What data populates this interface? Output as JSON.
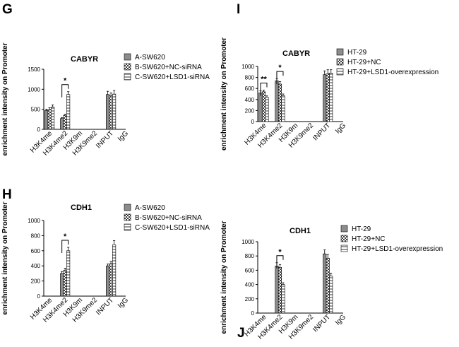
{
  "figure": {
    "series_colors": {
      "solid": "#8c8c8c",
      "checker": "#5a5a5a",
      "stripe": "#bdbdbd"
    },
    "panels": [
      {
        "id": "G",
        "chart_data": {
          "type": "bar",
          "panel_label": "G",
          "title": "CABYR",
          "ylabel": "enrichment intensity on Promoter",
          "xlabel": "",
          "ylim": [
            0,
            1500
          ],
          "yticks": [
            0,
            500,
            1000,
            1500
          ],
          "categories": [
            "H3K4me",
            "H3K4me2",
            "H3K9m",
            "H3K9me2",
            "INPUT",
            "IgG"
          ],
          "series": [
            {
              "name": "A-SW620",
              "pattern": "solid",
              "values": [
                470,
                270,
                0,
                0,
                870,
                0
              ],
              "errors": [
                35,
                25,
                0,
                0,
                80,
                0
              ]
            },
            {
              "name": "B-SW620+NC-siRNA",
              "pattern": "checker",
              "values": [
                500,
                350,
                0,
                0,
                840,
                0
              ],
              "errors": [
                40,
                30,
                0,
                0,
                70,
                0
              ]
            },
            {
              "name": "C-SW620+LSD1-siRNA",
              "pattern": "stripe",
              "values": [
                560,
                870,
                0,
                0,
                880,
                0
              ],
              "errors": [
                50,
                70,
                0,
                0,
                90,
                0
              ]
            }
          ],
          "annotations": [
            {
              "text": "*",
              "category": "H3K4me2"
            }
          ],
          "legend": "right"
        }
      },
      {
        "id": "I",
        "chart_data": {
          "type": "bar",
          "panel_label": "I",
          "title": "CABYR",
          "ylabel": "enrichment intensity on Promoter",
          "xlabel": "",
          "ylim": [
            0,
            1000
          ],
          "yticks": [
            0,
            200,
            400,
            600,
            800,
            1000
          ],
          "categories": [
            "H3K4me",
            "H3K4me2",
            "H3K9m",
            "H3K9me2",
            "INPUT",
            "IgG"
          ],
          "series": [
            {
              "name": "HT-29",
              "pattern": "solid",
              "values": [
                520,
                740,
                0,
                0,
                850,
                0
              ],
              "errors": [
                35,
                40,
                0,
                0,
                70,
                0
              ]
            },
            {
              "name": "HT-29+NC",
              "pattern": "checker",
              "values": [
                540,
                680,
                0,
                0,
                870,
                0
              ],
              "errors": [
                30,
                45,
                0,
                0,
                70,
                0
              ]
            },
            {
              "name": "HT-29+LSD1-overexpression",
              "pattern": "stripe",
              "values": [
                440,
                470,
                0,
                0,
                880,
                0
              ],
              "errors": [
                25,
                30,
                0,
                0,
                60,
                0
              ]
            }
          ],
          "annotations": [
            {
              "text": "**",
              "category": "H3K4me"
            },
            {
              "text": "*",
              "category": "H3K4me2"
            }
          ],
          "legend": "right"
        }
      },
      {
        "id": "H",
        "chart_data": {
          "type": "bar",
          "panel_label": "H",
          "title": "CDH1",
          "ylabel": "enrichment intensity on Promoter",
          "xlabel": "",
          "ylim": [
            0,
            1000
          ],
          "yticks": [
            0,
            200,
            400,
            600,
            800,
            1000
          ],
          "categories": [
            "H3K4me",
            "H3K4me2",
            "H3K9m",
            "H3K9me2",
            "INPUT",
            "IgG"
          ],
          "series": [
            {
              "name": "A-SW620",
              "pattern": "solid",
              "values": [
                0,
                300,
                0,
                0,
                400,
                0
              ],
              "errors": [
                0,
                25,
                0,
                0,
                25,
                0
              ]
            },
            {
              "name": "B-SW620+NC-siRNA",
              "pattern": "checker",
              "values": [
                0,
                340,
                0,
                0,
                430,
                0
              ],
              "errors": [
                0,
                30,
                0,
                0,
                30,
                0
              ]
            },
            {
              "name": "C-SW620+LSD1-siRNA",
              "pattern": "stripe",
              "values": [
                0,
                600,
                0,
                0,
                680,
                0
              ],
              "errors": [
                0,
                45,
                0,
                0,
                55,
                0
              ]
            }
          ],
          "annotations": [
            {
              "text": "*",
              "category": "H3K4me2"
            }
          ],
          "legend": "right"
        }
      },
      {
        "id": "J",
        "chart_data": {
          "type": "bar",
          "panel_label": "J",
          "title": "CDH1",
          "ylabel": "enrichment intensity on Promoter",
          "xlabel": "",
          "ylim": [
            0,
            1000
          ],
          "yticks": [
            0,
            200,
            400,
            600,
            800,
            1000
          ],
          "categories": [
            "H3K4me",
            "H3K4me2",
            "H3K9m",
            "H3K9me2",
            "INPUT",
            "IgG"
          ],
          "series": [
            {
              "name": "HT-29",
              "pattern": "solid",
              "values": [
                0,
                660,
                0,
                0,
                830,
                0
              ],
              "errors": [
                0,
                45,
                0,
                0,
                55,
                0
              ]
            },
            {
              "name": "HT-29+NC",
              "pattern": "checker",
              "values": [
                0,
                640,
                0,
                0,
                770,
                0
              ],
              "errors": [
                0,
                40,
                0,
                0,
                50,
                0
              ]
            },
            {
              "name": "HT-29+LSD1-overexpression",
              "pattern": "stripe",
              "values": [
                0,
                400,
                0,
                0,
                520,
                0
              ],
              "errors": [
                0,
                25,
                0,
                0,
                40,
                0
              ]
            }
          ],
          "annotations": [
            {
              "text": "*",
              "category": "H3K4me2"
            }
          ],
          "legend": "right"
        }
      }
    ]
  }
}
